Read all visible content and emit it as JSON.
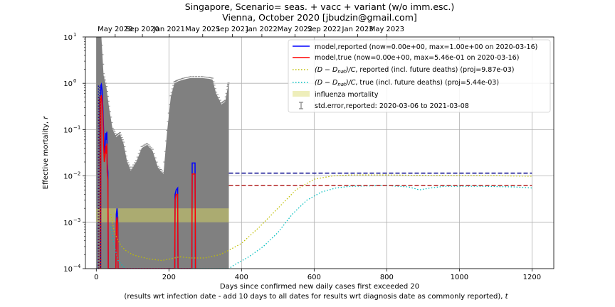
{
  "chart_data": {
    "type": "line",
    "title_line1": "Singapore, Scenario= seas. + vacc + variant (w/o imm.esc.)",
    "title_line2": "Vienna, October 2020 [jbudzin@gmail.com]",
    "xlabel_line1": "Days since confirmed new daily cases first exceeded 20",
    "xlabel_line2": "(results wrt infection date - add 10 days to all dates for results wrt diagnosis date as commonly reported), ",
    "xlabel_t": "t",
    "ylabel_text": "Effective mortality, ",
    "ylabel_r": "r",
    "xlim": [
      -30,
      1260
    ],
    "ylim": [
      0.0001,
      10
    ],
    "y_scale": "log",
    "grid": true,
    "legend_position": "top-right",
    "x_ticks": [
      0,
      200,
      400,
      600,
      800,
      1000,
      1200
    ],
    "x_tick_labels": [
      "0",
      "200",
      "400",
      "600",
      "800",
      "1000",
      "1200"
    ],
    "y_ticks": [
      0.0001,
      0.001,
      0.01,
      0.1,
      1,
      10
    ],
    "y_tick_labels": [
      {
        "base": "10",
        "exp": "−4"
      },
      {
        "base": "10",
        "exp": "−3"
      },
      {
        "base": "10",
        "exp": "−2"
      },
      {
        "base": "10",
        "exp": "−1"
      },
      {
        "base": "10",
        "exp": "0"
      },
      {
        "base": "10",
        "exp": "1"
      }
    ],
    "top_axis": {
      "positions": [
        52,
        127,
        201,
        293,
        375,
        456,
        547,
        628,
        720,
        800
      ],
      "labels": [
        "May 2020",
        "Sep 2020",
        "Jan 2021",
        "May 2021",
        "Sep 2021",
        "Jan 2022",
        "May 2022",
        "Sep 2022",
        "Jan 2023",
        "May 2023"
      ]
    },
    "legend": [
      {
        "label": "model,reported (now=0.00e+00, max=1.00e+00 on 2020-03-16)",
        "color": "#0000ff",
        "style": "solid"
      },
      {
        "label": "model,true (now=0.00e+00, max=5.46e-01 on 2020-03-16)",
        "color": "#ff0000",
        "style": "solid"
      },
      {
        "label": "(D − D_nat)/C, reported (incl. future deaths) (proj=9.87e-03)",
        "color": "#bfbf00",
        "style": "dotted"
      },
      {
        "label": "(D − D_nat)/C, true (incl. future deaths) (proj=5.44e-03)",
        "color": "#00bfbf",
        "style": "dotted"
      },
      {
        "label": "influenza mortality",
        "color": "#eeeebb",
        "style": "patch"
      },
      {
        "label": "std.error,reported: 2020-03-06 to 2021-03-08",
        "color": "#808080",
        "style": "errorbar"
      }
    ],
    "influenza_band": {
      "y_low": 0.001,
      "y_high": 0.002,
      "x_from": 0,
      "x_to": 365,
      "color": "#bdbd6b"
    },
    "projections": {
      "x_from": 365,
      "x_to": 1200,
      "reported": 0.0115,
      "true": 0.0062,
      "reported_color": "#00008b",
      "true_color": "#b22222"
    },
    "error_envelope": [
      [
        0,
        10
      ],
      [
        14,
        10
      ],
      [
        20,
        1.5
      ],
      [
        28,
        0.8
      ],
      [
        35,
        0.3
      ],
      [
        45,
        0.1
      ],
      [
        55,
        0.07
      ],
      [
        65,
        0.08
      ],
      [
        75,
        0.05
      ],
      [
        85,
        0.02
      ],
      [
        95,
        0.013
      ],
      [
        110,
        0.02
      ],
      [
        125,
        0.04
      ],
      [
        140,
        0.047
      ],
      [
        155,
        0.035
      ],
      [
        170,
        0.015
      ],
      [
        185,
        0.011
      ],
      [
        195,
        0.09
      ],
      [
        205,
        0.5
      ],
      [
        215,
        1.0
      ],
      [
        225,
        1.1
      ],
      [
        240,
        1.2
      ],
      [
        260,
        1.3
      ],
      [
        290,
        1.3
      ],
      [
        310,
        1.25
      ],
      [
        320,
        1.2
      ],
      [
        330,
        0.6
      ],
      [
        345,
        0.35
      ],
      [
        355,
        0.4
      ],
      [
        362,
        0.8
      ],
      [
        365,
        1.0
      ]
    ],
    "series": [
      {
        "name": "model,reported",
        "color": "#0000ff",
        "style": "solid",
        "points": [
          [
            12,
            0.0001
          ],
          [
            12.5,
            0.9
          ],
          [
            14,
            0.95
          ],
          [
            16,
            0.7
          ],
          [
            18,
            0.3
          ],
          [
            20,
            0.1
          ],
          [
            22,
            0.03
          ],
          [
            24,
            0.04
          ],
          [
            26,
            0.085
          ],
          [
            28,
            0.06
          ],
          [
            29,
            0.09
          ],
          [
            30,
            0.02
          ],
          [
            32,
            0.012
          ],
          [
            33,
            0.0001
          ],
          [
            54,
            0.0001
          ],
          [
            55,
            0.0015
          ],
          [
            57,
            0.002
          ],
          [
            59,
            0.0013
          ],
          [
            60,
            0.0001
          ],
          [
            216,
            0.0001
          ],
          [
            217,
            0.004
          ],
          [
            220,
            0.005
          ],
          [
            224,
            0.0055
          ],
          [
            225,
            0.0001
          ],
          [
            263,
            0.0001
          ],
          [
            264,
            0.019
          ],
          [
            272,
            0.019
          ],
          [
            273,
            0.0001
          ]
        ]
      },
      {
        "name": "model,true",
        "color": "#ff0000",
        "style": "solid",
        "points": [
          [
            12,
            0.0001
          ],
          [
            12.5,
            0.5
          ],
          [
            14,
            0.55
          ],
          [
            16,
            0.4
          ],
          [
            18,
            0.2
          ],
          [
            20,
            0.05
          ],
          [
            22,
            0.02
          ],
          [
            24,
            0.025
          ],
          [
            26,
            0.045
          ],
          [
            28,
            0.03
          ],
          [
            29,
            0.05
          ],
          [
            30,
            0.012
          ],
          [
            32,
            0.008
          ],
          [
            33,
            0.0001
          ],
          [
            54,
            0.0001
          ],
          [
            55,
            0.001
          ],
          [
            57,
            0.0013
          ],
          [
            59,
            0.0009
          ],
          [
            60,
            0.0001
          ],
          [
            216,
            0.0001
          ],
          [
            217,
            0.003
          ],
          [
            220,
            0.004
          ],
          [
            224,
            0.004
          ],
          [
            225,
            0.0001
          ],
          [
            263,
            0.0001
          ],
          [
            264,
            0.011
          ],
          [
            272,
            0.011
          ],
          [
            273,
            0.0001
          ]
        ]
      },
      {
        "name": "(D-Dnat)/C, reported",
        "color": "#bfbf00",
        "style": "dotted",
        "points": [
          [
            40,
            0.0015
          ],
          [
            50,
            0.0006
          ],
          [
            60,
            0.0004
          ],
          [
            70,
            0.0003
          ],
          [
            80,
            0.00025
          ],
          [
            100,
            0.0002
          ],
          [
            120,
            0.00018
          ],
          [
            150,
            0.00016
          ],
          [
            180,
            0.00015
          ],
          [
            200,
            0.00016
          ],
          [
            230,
            0.00018
          ],
          [
            260,
            0.00017
          ],
          [
            300,
            0.00017
          ],
          [
            340,
            0.0002
          ],
          [
            365,
            0.00025
          ],
          [
            400,
            0.00035
          ],
          [
            450,
            0.0008
          ],
          [
            500,
            0.002
          ],
          [
            550,
            0.005
          ],
          [
            600,
            0.0085
          ],
          [
            650,
            0.01
          ],
          [
            700,
            0.0105
          ],
          [
            800,
            0.0105
          ],
          [
            900,
            0.0103
          ],
          [
            1000,
            0.0102
          ],
          [
            1100,
            0.0101
          ],
          [
            1200,
            0.0099
          ]
        ]
      },
      {
        "name": "(D-Dnat)/C, true",
        "color": "#00bfbf",
        "style": "dotted",
        "points": [
          [
            40,
            0.0008
          ],
          [
            50,
            0.0003
          ],
          [
            60,
            0.00015
          ],
          [
            70,
            0.00012
          ],
          [
            80,
            0.0001
          ],
          [
            365,
            0.0001
          ],
          [
            380,
            0.00012
          ],
          [
            420,
            0.00018
          ],
          [
            460,
            0.0003
          ],
          [
            500,
            0.0006
          ],
          [
            540,
            0.0015
          ],
          [
            580,
            0.003
          ],
          [
            620,
            0.0045
          ],
          [
            660,
            0.0055
          ],
          [
            700,
            0.006
          ],
          [
            800,
            0.0062
          ],
          [
            860,
            0.0058
          ],
          [
            890,
            0.005
          ],
          [
            920,
            0.0055
          ],
          [
            960,
            0.006
          ],
          [
            1050,
            0.006
          ],
          [
            1150,
            0.0058
          ],
          [
            1200,
            0.0055
          ]
        ]
      },
      {
        "name": "early reported dotted",
        "color": "#0000b0",
        "style": "dotted",
        "points": [
          [
            5,
            0.0001
          ],
          [
            6,
            0.9
          ],
          [
            9,
            0.8
          ],
          [
            12,
            0.0001
          ]
        ]
      },
      {
        "name": "early true dotted",
        "color": "#8b0000",
        "style": "dotted",
        "points": [
          [
            7,
            0.0001
          ],
          [
            8,
            0.5
          ],
          [
            10,
            0.4
          ],
          [
            12,
            0.0001
          ]
        ]
      }
    ]
  }
}
